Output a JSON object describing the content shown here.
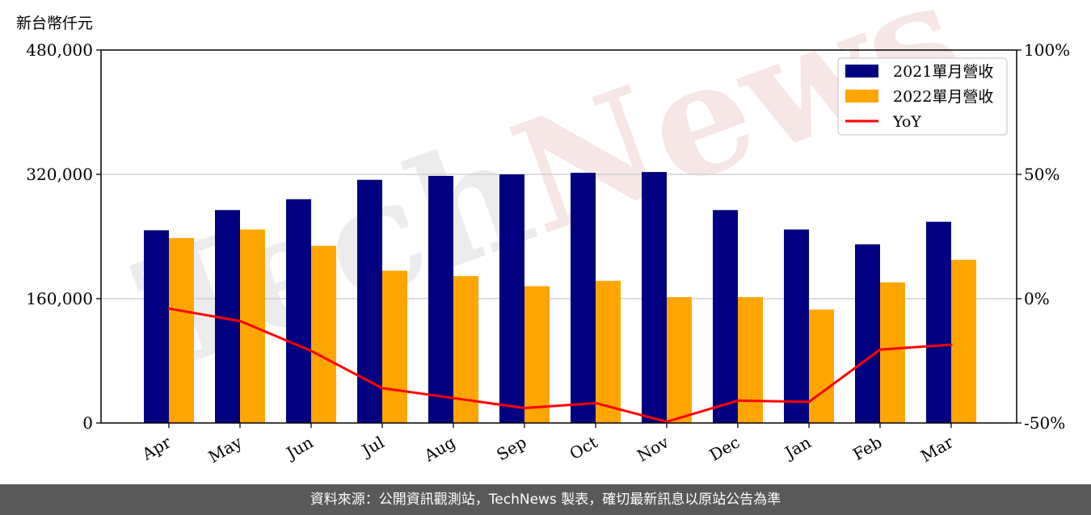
{
  "chart_data": {
    "type": "bar",
    "unit_label": "新台幣仟元",
    "categories": [
      "Apr",
      "May",
      "Jun",
      "Jul",
      "Aug",
      "Sep",
      "Oct",
      "Nov",
      "Dec",
      "Jan",
      "Feb",
      "Mar"
    ],
    "series": [
      {
        "name": "2021單月營收",
        "type": "bar",
        "color": "#000080",
        "values": [
          248000,
          274000,
          288000,
          313000,
          318000,
          320000,
          322000,
          323000,
          274000,
          249000,
          230000,
          259000
        ]
      },
      {
        "name": "2022單月營收",
        "type": "bar",
        "color": "#FFA500",
        "values": [
          238000,
          249000,
          228000,
          196000,
          189000,
          176000,
          183000,
          162000,
          162000,
          146000,
          181000,
          210000
        ]
      },
      {
        "name": "YoY",
        "type": "line",
        "axis": "right",
        "color": "#FF0000",
        "unit": "%",
        "values": [
          -4,
          -9,
          -21,
          -36,
          -40,
          -44,
          -42,
          -49.5,
          -41,
          -41.5,
          -20.5,
          -18.5
        ]
      }
    ],
    "y_left": {
      "ylim": [
        0,
        480000
      ],
      "ticks": [
        "0",
        "160,000",
        "320,000",
        "480,000"
      ],
      "tick_values": [
        0,
        160000,
        320000,
        480000
      ]
    },
    "y_right": {
      "ylim": [
        -50,
        100
      ],
      "ticks": [
        "-50%",
        "0%",
        "50%",
        "100%"
      ],
      "tick_values": [
        -50,
        0,
        50,
        100
      ]
    },
    "grid": "horizontal",
    "legend": "top-right",
    "watermark": "TechNews"
  },
  "footer": {
    "text": "資料來源：公開資訊觀測站，TechNews 製表，確切最新訊息以原站公告為準"
  }
}
